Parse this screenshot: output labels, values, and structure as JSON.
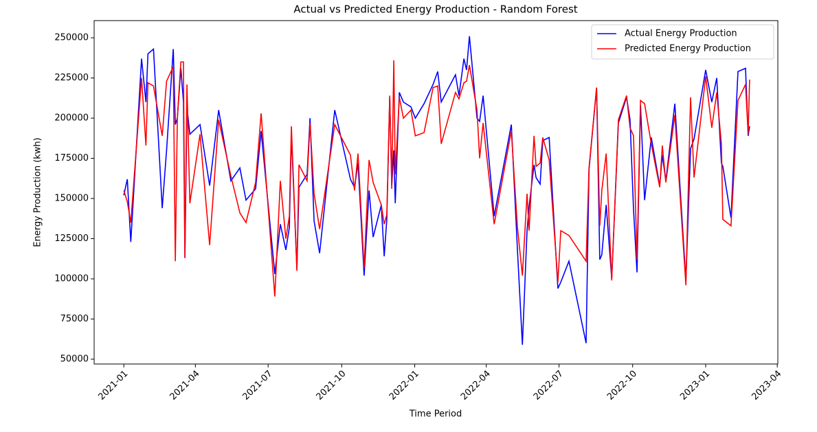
{
  "chart_data": {
    "type": "line",
    "title": "Actual vs Predicted Energy Production - Random Forest",
    "xlabel": "Time Period",
    "ylabel": "Energy Production (kwh)",
    "x": [
      2021.0,
      2021.012,
      2021.024,
      2021.061,
      2021.076,
      2021.083,
      2021.102,
      2021.132,
      2021.147,
      2021.17,
      2021.177,
      2021.184,
      2021.196,
      2021.205,
      2021.21,
      2021.217,
      2021.227,
      2021.262,
      2021.295,
      2021.326,
      2021.368,
      2021.399,
      2021.42,
      2021.453,
      2021.472,
      2021.519,
      2021.538,
      2021.557,
      2021.569,
      2021.576,
      2021.595,
      2021.602,
      2021.63,
      2021.64,
      2021.654,
      2021.673,
      2021.725,
      2021.779,
      2021.793,
      2021.805,
      2021.826,
      2021.843,
      2021.857,
      2021.885,
      2021.895,
      2021.904,
      2021.914,
      2021.921,
      2021.928,
      2021.933,
      2021.947,
      2021.961,
      2021.987,
      2022.002,
      2022.032,
      2022.063,
      2022.079,
      2022.091,
      2022.14,
      2022.152,
      2022.169,
      2022.178,
      2022.188,
      2022.214,
      2022.223,
      2022.235,
      2022.273,
      2022.332,
      2022.353,
      2022.37,
      2022.386,
      2022.393,
      2022.41,
      2022.417,
      2022.431,
      2022.44,
      2022.462,
      2022.492,
      2022.502,
      2022.53,
      2022.589,
      2022.599,
      2022.625,
      2022.636,
      2022.643,
      2022.658,
      2022.677,
      2022.7,
      2022.728,
      2022.74,
      2022.752,
      2022.764,
      2022.776,
      2022.79,
      2022.813,
      2022.842,
      2022.851,
      2022.863,
      2022.894,
      2022.932,
      2022.948,
      2022.96,
      2023.0,
      2023.021,
      2023.038,
      2023.054,
      2023.059,
      2023.087,
      2023.111,
      2023.137,
      2023.146,
      2023.151
    ],
    "series": [
      {
        "name": "Actual Energy Production",
        "color": "#0000ff",
        "values": [
          152000,
          162000,
          123000,
          237000,
          210000,
          240000,
          243000,
          144000,
          180000,
          243000,
          196000,
          200000,
          231000,
          210000,
          113000,
          207000,
          190000,
          196000,
          158000,
          205000,
          161000,
          169000,
          149000,
          156000,
          192000,
          103000,
          134000,
          118000,
          132000,
          190000,
          106000,
          157000,
          165000,
          200000,
          136000,
          116000,
          205000,
          162000,
          157000,
          172000,
          102000,
          155000,
          126000,
          146000,
          114000,
          137000,
          213000,
          158000,
          180000,
          147000,
          216000,
          210000,
          207000,
          200000,
          209000,
          221000,
          229000,
          210000,
          227000,
          214000,
          237000,
          230000,
          251000,
          200000,
          198000,
          214000,
          139000,
          196000,
          118000,
          59000,
          130000,
          145000,
          171000,
          163000,
          159000,
          186000,
          188000,
          94000,
          98000,
          111000,
          60000,
          168000,
          219000,
          112000,
          115000,
          146000,
          100000,
          197000,
          213000,
          199000,
          143000,
          104000,
          208000,
          149000,
          188000,
          158000,
          177000,
          161000,
          209000,
          99000,
          181000,
          187000,
          230000,
          210000,
          225000,
          172000,
          170000,
          138000,
          229000,
          231000,
          189000,
          195000
        ]
      },
      {
        "name": "Predicted Energy Production",
        "color": "#ff0000",
        "values": [
          155000,
          148000,
          135000,
          225000,
          183000,
          222000,
          220000,
          189000,
          223000,
          232000,
          111000,
          200000,
          235000,
          235000,
          113000,
          221000,
          147000,
          190000,
          121000,
          199000,
          164000,
          141000,
          135000,
          160000,
          203000,
          89000,
          161000,
          125000,
          139000,
          195000,
          105000,
          171000,
          161000,
          197000,
          153000,
          131000,
          196000,
          177000,
          155000,
          178000,
          107000,
          174000,
          160000,
          146000,
          134000,
          140000,
          214000,
          156000,
          236000,
          165000,
          213000,
          200000,
          205000,
          189000,
          191000,
          219000,
          220000,
          184000,
          216000,
          212000,
          222000,
          223000,
          233000,
          205000,
          175000,
          197000,
          134000,
          192000,
          132000,
          102000,
          153000,
          130000,
          189000,
          170000,
          172000,
          188000,
          174000,
          98000,
          130000,
          127000,
          111000,
          169000,
          219000,
          133000,
          155000,
          178000,
          99000,
          199000,
          214000,
          194000,
          189000,
          112000,
          211000,
          209000,
          184000,
          157000,
          183000,
          160000,
          202000,
          96000,
          213000,
          163000,
          226000,
          194000,
          216000,
          184000,
          137000,
          133000,
          211000,
          221000,
          190000,
          224000
        ]
      }
    ],
    "xlim": [
      2020.898,
      2023.248
    ],
    "xticks": [
      {
        "value": 2021.0,
        "label": "2021-01"
      },
      {
        "value": 2021.246,
        "label": "2021-04"
      },
      {
        "value": 2021.496,
        "label": "2021-07"
      },
      {
        "value": 2021.749,
        "label": "2021-10"
      },
      {
        "value": 2022.0,
        "label": "2022-01"
      },
      {
        "value": 2022.246,
        "label": "2022-04"
      },
      {
        "value": 2022.496,
        "label": "2022-07"
      },
      {
        "value": 2022.749,
        "label": "2022-10"
      },
      {
        "value": 2023.0,
        "label": "2023-01"
      },
      {
        "value": 2023.246,
        "label": "2023-04"
      }
    ],
    "ylim": [
      47000,
      260700
    ],
    "yticks": [
      50000,
      75000,
      100000,
      125000,
      150000,
      175000,
      200000,
      225000,
      250000
    ],
    "legend": "upper right"
  }
}
